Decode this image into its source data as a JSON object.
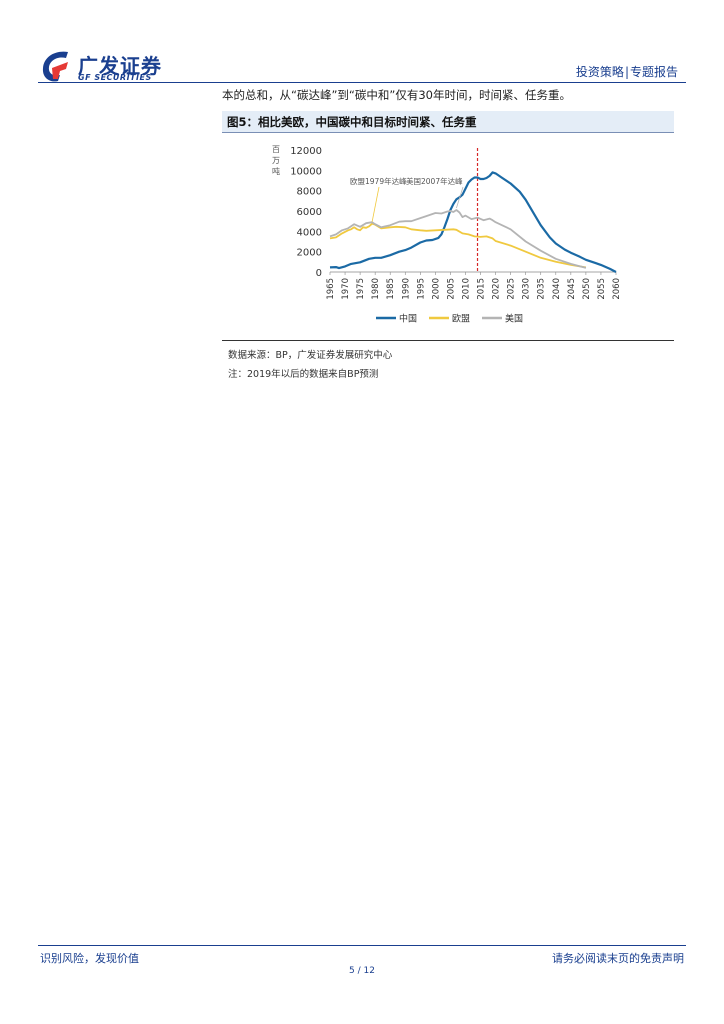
{
  "header": {
    "logo_cn": "广发证券",
    "logo_en": "GF SECURITIES",
    "section": "投资策略",
    "report_type": "专题报告"
  },
  "body_text": "本的总和，从“碳达峰”到“碳中和”仅有30年时间，时间紧、任务重。",
  "figure": {
    "title": "图5：相比美欧，中国碳中和目标时间紧、任务重"
  },
  "chart_data": {
    "type": "line",
    "title": "",
    "ylabel": "百万吨",
    "ylim": [
      0,
      12000
    ],
    "yticks": [
      0,
      2000,
      4000,
      6000,
      8000,
      10000,
      12000
    ],
    "xlim": [
      1965,
      2060
    ],
    "xticks": [
      1965,
      1970,
      1975,
      1980,
      1985,
      1990,
      1995,
      2000,
      2005,
      2010,
      2015,
      2020,
      2025,
      2030,
      2035,
      2040,
      2045,
      2050,
      2055,
      2060
    ],
    "marker_year": 2014,
    "annotations": [
      "欧盟1979年达峰",
      "美国2007年达峰"
    ],
    "series": [
      {
        "name": "中国",
        "color": "#1b6aa5",
        "points": [
          [
            1965,
            450
          ],
          [
            1967,
            480
          ],
          [
            1968,
            380
          ],
          [
            1970,
            550
          ],
          [
            1972,
            800
          ],
          [
            1975,
            950
          ],
          [
            1978,
            1300
          ],
          [
            1980,
            1400
          ],
          [
            1982,
            1400
          ],
          [
            1985,
            1650
          ],
          [
            1988,
            2000
          ],
          [
            1990,
            2150
          ],
          [
            1992,
            2400
          ],
          [
            1995,
            2900
          ],
          [
            1997,
            3100
          ],
          [
            1999,
            3150
          ],
          [
            2001,
            3350
          ],
          [
            2002,
            3700
          ],
          [
            2003,
            4400
          ],
          [
            2004,
            5200
          ],
          [
            2005,
            6100
          ],
          [
            2006,
            6700
          ],
          [
            2007,
            7150
          ],
          [
            2008,
            7350
          ],
          [
            2009,
            7600
          ],
          [
            2010,
            8200
          ],
          [
            2011,
            8800
          ],
          [
            2012,
            9100
          ],
          [
            2013,
            9300
          ],
          [
            2014,
            9300
          ],
          [
            2015,
            9150
          ],
          [
            2016,
            9150
          ],
          [
            2017,
            9250
          ],
          [
            2018,
            9450
          ],
          [
            2019,
            9800
          ],
          [
            2020,
            9700
          ],
          [
            2022,
            9300
          ],
          [
            2025,
            8700
          ],
          [
            2028,
            7900
          ],
          [
            2030,
            7100
          ],
          [
            2033,
            5600
          ],
          [
            2035,
            4600
          ],
          [
            2038,
            3400
          ],
          [
            2040,
            2800
          ],
          [
            2043,
            2200
          ],
          [
            2045,
            1900
          ],
          [
            2048,
            1500
          ],
          [
            2050,
            1200
          ],
          [
            2053,
            900
          ],
          [
            2055,
            700
          ],
          [
            2058,
            300
          ],
          [
            2060,
            0
          ]
        ]
      },
      {
        "name": "欧盟",
        "color": "#f0c93f",
        "points": [
          [
            1965,
            3300
          ],
          [
            1967,
            3400
          ],
          [
            1969,
            3800
          ],
          [
            1971,
            4100
          ],
          [
            1972,
            4200
          ],
          [
            1973,
            4400
          ],
          [
            1974,
            4200
          ],
          [
            1975,
            4100
          ],
          [
            1976,
            4400
          ],
          [
            1977,
            4350
          ],
          [
            1978,
            4500
          ],
          [
            1979,
            4750
          ],
          [
            1980,
            4650
          ],
          [
            1982,
            4300
          ],
          [
            1985,
            4400
          ],
          [
            1987,
            4450
          ],
          [
            1990,
            4400
          ],
          [
            1992,
            4200
          ],
          [
            1995,
            4100
          ],
          [
            1997,
            4050
          ],
          [
            2000,
            4100
          ],
          [
            2003,
            4150
          ],
          [
            2006,
            4200
          ],
          [
            2007,
            4150
          ],
          [
            2009,
            3800
          ],
          [
            2011,
            3700
          ],
          [
            2013,
            3500
          ],
          [
            2015,
            3450
          ],
          [
            2017,
            3500
          ],
          [
            2019,
            3300
          ],
          [
            2020,
            3050
          ],
          [
            2025,
            2600
          ],
          [
            2030,
            2000
          ],
          [
            2035,
            1400
          ],
          [
            2040,
            1000
          ],
          [
            2045,
            700
          ],
          [
            2050,
            450
          ]
        ]
      },
      {
        "name": "美国",
        "color": "#b4b4b4",
        "points": [
          [
            1965,
            3500
          ],
          [
            1967,
            3700
          ],
          [
            1969,
            4100
          ],
          [
            1971,
            4300
          ],
          [
            1973,
            4700
          ],
          [
            1975,
            4450
          ],
          [
            1977,
            4800
          ],
          [
            1979,
            4900
          ],
          [
            1980,
            4700
          ],
          [
            1982,
            4400
          ],
          [
            1985,
            4600
          ],
          [
            1988,
            4950
          ],
          [
            1990,
            5000
          ],
          [
            1992,
            5000
          ],
          [
            1995,
            5300
          ],
          [
            1997,
            5500
          ],
          [
            2000,
            5800
          ],
          [
            2002,
            5750
          ],
          [
            2004,
            5950
          ],
          [
            2005,
            6000
          ],
          [
            2006,
            5900
          ],
          [
            2007,
            6100
          ],
          [
            2008,
            5850
          ],
          [
            2009,
            5400
          ],
          [
            2010,
            5550
          ],
          [
            2012,
            5200
          ],
          [
            2014,
            5350
          ],
          [
            2016,
            5100
          ],
          [
            2018,
            5250
          ],
          [
            2019,
            5100
          ],
          [
            2020,
            4900
          ],
          [
            2025,
            4200
          ],
          [
            2030,
            3000
          ],
          [
            2035,
            2100
          ],
          [
            2040,
            1300
          ],
          [
            2045,
            800
          ],
          [
            2050,
            400
          ]
        ]
      }
    ]
  },
  "source_note": "数据来源：BP，广发证券发展研究中心",
  "extra_note": "注：2019年以后的数据来自BP预测",
  "footer": {
    "left": "识别风险，发现价值",
    "right": "请务必阅读末页的免责声明",
    "page": "5 / 12"
  }
}
